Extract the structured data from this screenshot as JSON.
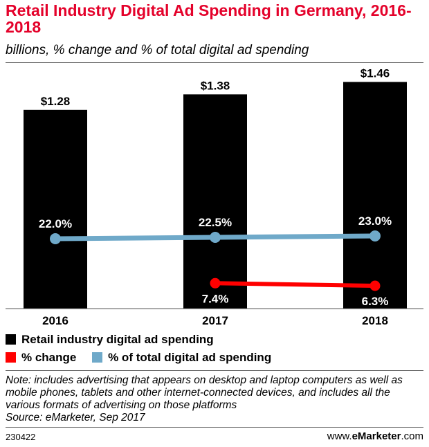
{
  "header": {
    "title": "Retail Industry Digital Ad Spending in Germany, 2016-2018",
    "subtitle": "billions, % change and % of total digital ad spending"
  },
  "colors": {
    "title": "#e4022b",
    "bars": "#000000",
    "pct_change": "#ff0000",
    "pct_total": "#6fa9c9"
  },
  "chart_data": {
    "type": "bar",
    "categories": [
      "2016",
      "2017",
      "2018"
    ],
    "series": [
      {
        "name": "Retail industry digital ad spending",
        "kind": "bar",
        "values": [
          1.28,
          1.38,
          1.46
        ],
        "labels": [
          "$1.28",
          "$1.38",
          "$1.46"
        ]
      },
      {
        "name": "% change",
        "kind": "line",
        "values": [
          null,
          7.4,
          6.3
        ],
        "labels": [
          "",
          "7.4%",
          "6.3%"
        ]
      },
      {
        "name": "% of total digital ad spending",
        "kind": "line",
        "values": [
          22.0,
          22.5,
          23.0
        ],
        "labels": [
          "22.0%",
          "22.5%",
          "23.0%"
        ]
      }
    ],
    "ylim_bars": [
      0,
      1.6
    ],
    "legend_position": "bottom"
  },
  "legend": {
    "bars": "Retail industry digital ad spending",
    "pct_change": "% change",
    "pct_total": "% of total digital ad spending"
  },
  "note": "Note: includes advertising that appears on desktop and laptop computers as well as mobile phones, tablets and other internet-connected devices, and includes all the various formats of advertising on those platforms",
  "source": "Source: eMarketer, Sep 2017",
  "footer": {
    "id": "230422",
    "site_prefix": "www.",
    "site_brand": "eMarketer",
    "site_suffix": ".com"
  }
}
